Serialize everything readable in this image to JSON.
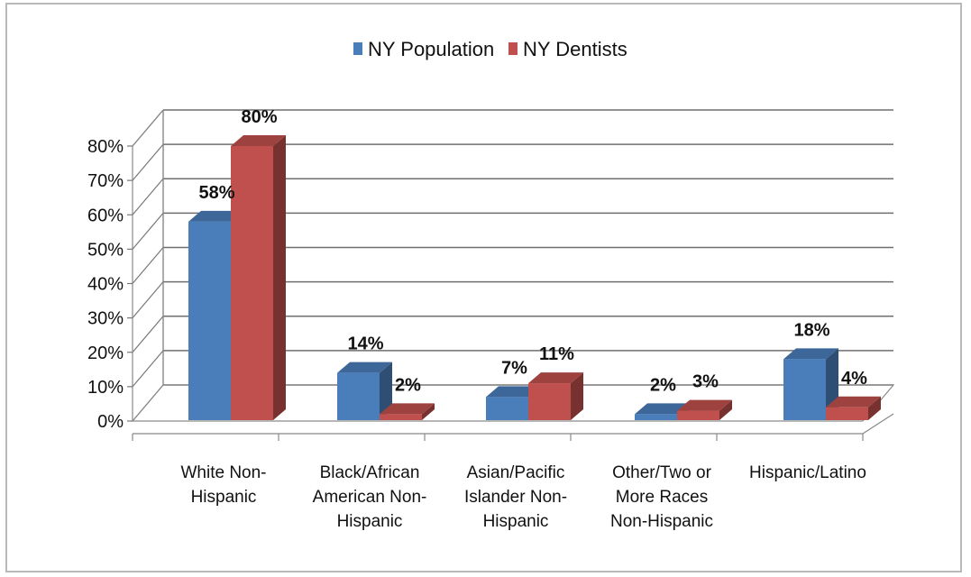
{
  "chart_data": {
    "type": "bar",
    "categories": [
      [
        "White Non-",
        "Hispanic"
      ],
      [
        "Black/African",
        "American Non-",
        "Hispanic"
      ],
      [
        "Asian/Pacific",
        "Islander Non-",
        "Hispanic"
      ],
      [
        "Other/Two or",
        "More Races",
        "Non-Hispanic"
      ],
      [
        "Hispanic/Latino"
      ]
    ],
    "series": [
      {
        "name": "NY Population",
        "values": [
          58,
          14,
          7,
          2,
          18
        ],
        "labels": [
          "58%",
          "14%",
          "7%",
          "2%",
          "18%"
        ],
        "color": "#4a7ebb"
      },
      {
        "name": "NY Dentists",
        "values": [
          80,
          2,
          11,
          3,
          4
        ],
        "labels": [
          "80%",
          "2%",
          "11%",
          "3%",
          "4%"
        ],
        "color": "#c0504d"
      }
    ],
    "yticks": [
      "0%",
      "10%",
      "20%",
      "30%",
      "40%",
      "50%",
      "60%",
      "70%",
      "80%"
    ],
    "ylim": [
      0,
      80
    ],
    "grid": true,
    "legend": "top-center",
    "three_d": true
  }
}
